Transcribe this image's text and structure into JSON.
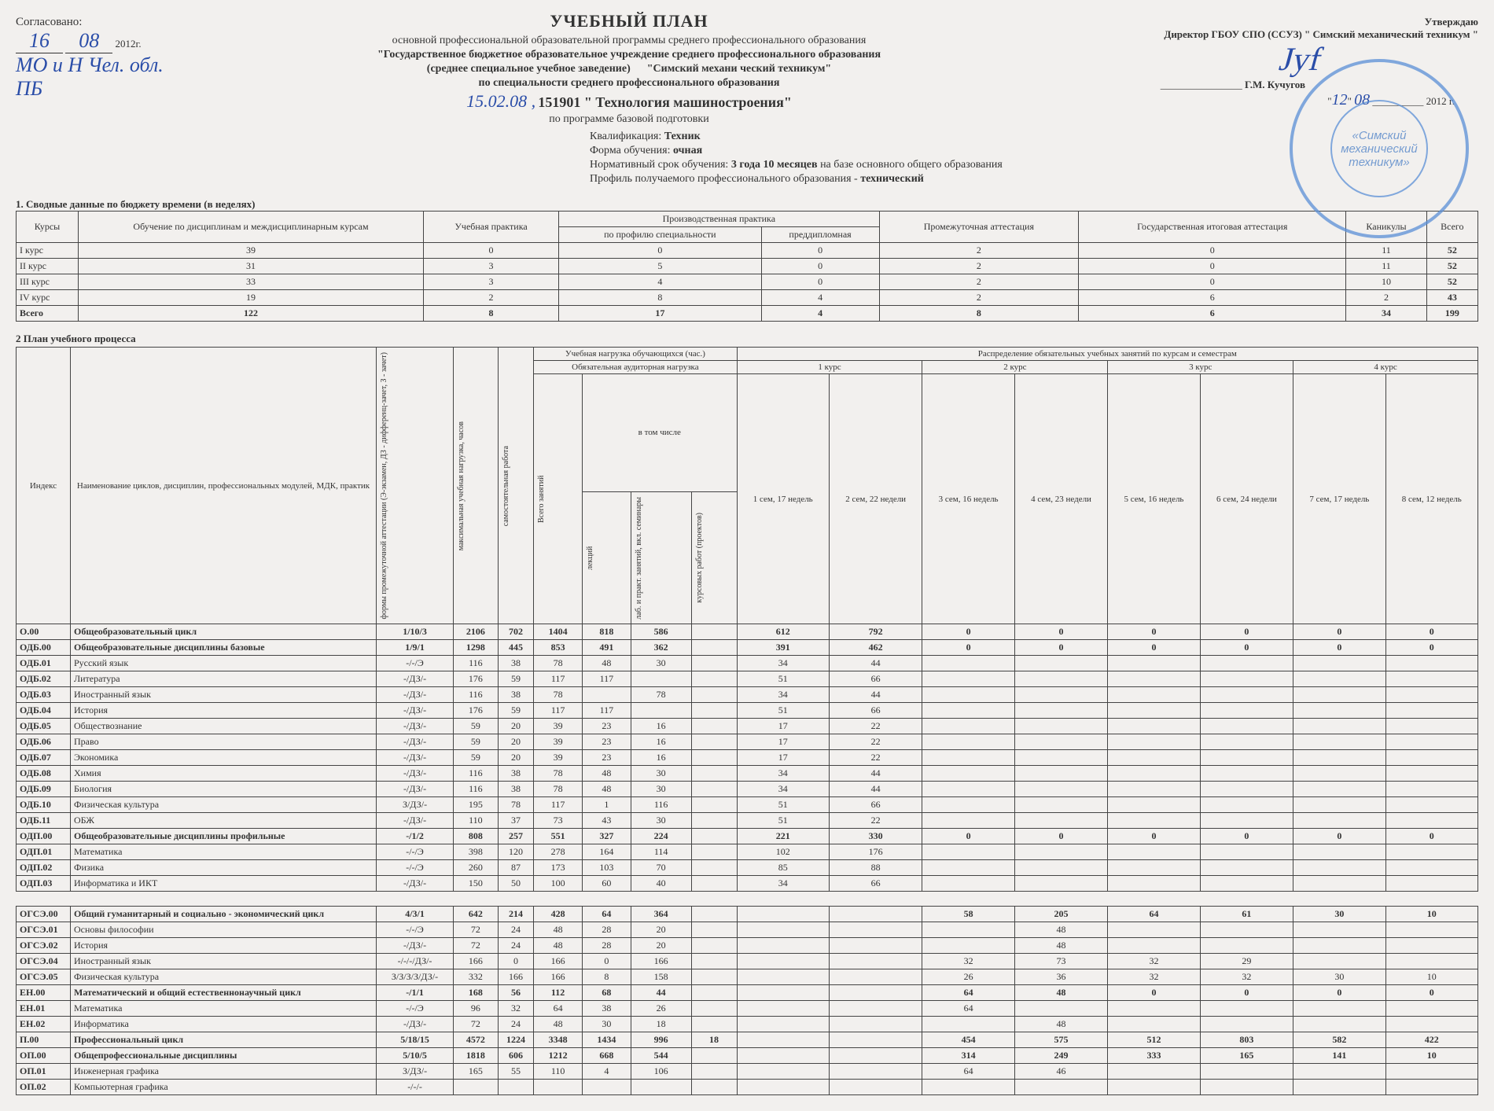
{
  "left": {
    "agreed": "Согласовано:",
    "date_d": "16",
    "date_m": "08",
    "year": "2012г.",
    "hand1": "МО и Н Чел. обл.",
    "hand2": "ПБ"
  },
  "right": {
    "approve": "Утверждаю",
    "director": "Директор ГБОУ СПО (ССУЗ) \" Симский механический техникум \"",
    "name": "Г.М. Кучугов",
    "date_d": "12",
    "date_m": "08",
    "year": "2012 г.",
    "stamp_inner": "«Симский механический техникум»"
  },
  "head": {
    "title": "УЧЕБНЫЙ ПЛАН",
    "sub1": "основной профессиональной образовательной программы среднего профессионального образования",
    "line2a": "\"Государственное  бюджетное образовательное учреждение среднего профессионального образования",
    "line2b": "(среднее специальное учебное  заведение)",
    "line2c": "\"Симский механи ческий техникум\"",
    "line3": "по специальности среднего профессионального образования",
    "code_hand": "15.02.08 ,",
    "code": "151901 \" Технология машиностроения\"",
    "line5": "по программе базовой подготовки"
  },
  "meta": {
    "qual_l": "Квалификация:",
    "qual_v": "Техник",
    "form_l": "Форма обучения:",
    "form_v": "очная",
    "term_l": "Нормативный срок обучения:",
    "term_v": "3 года 10 месяцев",
    "term_t": "на базе основного общего образования",
    "prof_l": "Профиль получаемого профессионального  образования -",
    "prof_v": "технический"
  },
  "t1": {
    "title": "1. Сводные данные по бюджету времени (в неделях)",
    "h": {
      "k": "Курсы",
      "train": "Обучение по дисциплинам и междисциплинарным курсам",
      "up": "Учебная практика",
      "pp": "Производственная практика",
      "pp1": "по профилю специальности",
      "pp2": "преддипломная",
      "pa": "Промежуточная аттестация",
      "gia": "Государственная итоговая аттестация",
      "vac": "Каникулы",
      "tot": "Всего"
    },
    "rows": [
      {
        "k": "I курс",
        "t": "39",
        "up": "0",
        "p1": "0",
        "p2": "0",
        "pa": "2",
        "g": "0",
        "v": "11",
        "s": "52"
      },
      {
        "k": "II курс",
        "t": "31",
        "up": "3",
        "p1": "5",
        "p2": "0",
        "pa": "2",
        "g": "0",
        "v": "11",
        "s": "52"
      },
      {
        "k": "III курс",
        "t": "33",
        "up": "3",
        "p1": "4",
        "p2": "0",
        "pa": "2",
        "g": "0",
        "v": "10",
        "s": "52"
      },
      {
        "k": "IV курс",
        "t": "19",
        "up": "2",
        "p1": "8",
        "p2": "4",
        "pa": "2",
        "g": "6",
        "v": "2",
        "s": "43"
      }
    ],
    "total": {
      "k": "Всего",
      "t": "122",
      "up": "8",
      "p1": "17",
      "p2": "4",
      "pa": "8",
      "g": "6",
      "v": "34",
      "s": "199"
    }
  },
  "t2": {
    "title": "2 План учебного процесса",
    "h": {
      "idx": "Индекс",
      "name": "Наименование циклов, дисциплин, профессиональных модулей, МДК, практик",
      "att": "формы промежуточной аттестации (Э-экзамен, ДЗ - дифференц-зачет, З - зачет)",
      "max": "максимальная учебная нагрузка, часов",
      "self": "самостоятельная работа",
      "load": "Учебная нагрузка обучающихся (час.)",
      "oblig": "Обязательная аудиторная нагрузка",
      "incl": "в том числе",
      "tot": "Всего занятий",
      "lec": "лекций",
      "lab": "лаб. и практ. занятий, вкл. семинары",
      "kp": "курсовых работ (проектов)",
      "dist": "Распределение обязательных учебных занятий по курсам и семестрам",
      "k1": "1 курс",
      "k2": "2 курс",
      "k3": "3 курс",
      "k4": "4 курс",
      "s1": "1 сем, 17 недель",
      "s2": "2 сем, 22 недели",
      "s3": "3 сем, 16 недель",
      "s4": "4 сем, 23 недели",
      "s5": "5 сем, 16 недель",
      "s6": "6 сем, 24 недели",
      "s7": "7 сем, 17 недель",
      "s8": "8 сем, 12 недель"
    },
    "rows": [
      {
        "sec": true,
        "i": "О.00",
        "n": "Общеобразовательный цикл",
        "a": "1/10/3",
        "mx": "2106",
        "sf": "702",
        "tt": "1404",
        "lc": "818",
        "lb": "586",
        "kp": "",
        "s": [
          "612",
          "792",
          "0",
          "0",
          "0",
          "0",
          "0",
          "0"
        ]
      },
      {
        "sec": true,
        "i": "ОДБ.00",
        "n": "Общеобразовательные дисциплины базовые",
        "a": "1/9/1",
        "mx": "1298",
        "sf": "445",
        "tt": "853",
        "lc": "491",
        "lb": "362",
        "kp": "",
        "s": [
          "391",
          "462",
          "0",
          "0",
          "0",
          "0",
          "0",
          "0"
        ]
      },
      {
        "i": "ОДБ.01",
        "n": "Русский язык",
        "a": "-/-/Э",
        "mx": "116",
        "sf": "38",
        "tt": "78",
        "lc": "48",
        "lb": "30",
        "kp": "",
        "s": [
          "34",
          "44",
          "",
          "",
          "",
          "",
          "",
          ""
        ]
      },
      {
        "i": "ОДБ.02",
        "n": "Литература",
        "a": "-/ДЗ/-",
        "mx": "176",
        "sf": "59",
        "tt": "117",
        "lc": "117",
        "lb": "",
        "kp": "",
        "s": [
          "51",
          "66",
          "",
          "",
          "",
          "",
          "",
          ""
        ]
      },
      {
        "i": "ОДБ.03",
        "n": "Иностранный язык",
        "a": "-/ДЗ/-",
        "mx": "116",
        "sf": "38",
        "tt": "78",
        "lc": "",
        "lb": "78",
        "kp": "",
        "s": [
          "34",
          "44",
          "",
          "",
          "",
          "",
          "",
          ""
        ]
      },
      {
        "i": "ОДБ.04",
        "n": "История",
        "a": "-/ДЗ/-",
        "mx": "176",
        "sf": "59",
        "tt": "117",
        "lc": "117",
        "lb": "",
        "kp": "",
        "s": [
          "51",
          "66",
          "",
          "",
          "",
          "",
          "",
          ""
        ]
      },
      {
        "i": "ОДБ.05",
        "n": "Обществознание",
        "a": "-/ДЗ/-",
        "mx": "59",
        "sf": "20",
        "tt": "39",
        "lc": "23",
        "lb": "16",
        "kp": "",
        "s": [
          "17",
          "22",
          "",
          "",
          "",
          "",
          "",
          ""
        ]
      },
      {
        "i": "ОДБ.06",
        "n": "Право",
        "a": "-/ДЗ/-",
        "mx": "59",
        "sf": "20",
        "tt": "39",
        "lc": "23",
        "lb": "16",
        "kp": "",
        "s": [
          "17",
          "22",
          "",
          "",
          "",
          "",
          "",
          ""
        ]
      },
      {
        "i": "ОДБ.07",
        "n": "Экономика",
        "a": "-/ДЗ/-",
        "mx": "59",
        "sf": "20",
        "tt": "39",
        "lc": "23",
        "lb": "16",
        "kp": "",
        "s": [
          "17",
          "22",
          "",
          "",
          "",
          "",
          "",
          ""
        ]
      },
      {
        "i": "ОДБ.08",
        "n": "Химия",
        "a": "-/ДЗ/-",
        "mx": "116",
        "sf": "38",
        "tt": "78",
        "lc": "48",
        "lb": "30",
        "kp": "",
        "s": [
          "34",
          "44",
          "",
          "",
          "",
          "",
          "",
          ""
        ]
      },
      {
        "i": "ОДБ.09",
        "n": "Биология",
        "a": "-/ДЗ/-",
        "mx": "116",
        "sf": "38",
        "tt": "78",
        "lc": "48",
        "lb": "30",
        "kp": "",
        "s": [
          "34",
          "44",
          "",
          "",
          "",
          "",
          "",
          ""
        ]
      },
      {
        "i": "ОДБ.10",
        "n": "Физическая культура",
        "a": "З/ДЗ/-",
        "mx": "195",
        "sf": "78",
        "tt": "117",
        "lc": "1",
        "lb": "116",
        "kp": "",
        "s": [
          "51",
          "66",
          "",
          "",
          "",
          "",
          "",
          ""
        ]
      },
      {
        "i": "ОДБ.11",
        "n": "ОБЖ",
        "a": "-/ДЗ/-",
        "mx": "110",
        "sf": "37",
        "tt": "73",
        "lc": "43",
        "lb": "30",
        "kp": "",
        "s": [
          "51",
          "22",
          "",
          "",
          "",
          "",
          "",
          ""
        ]
      },
      {
        "sec": true,
        "i": "ОДП.00",
        "n": "Общеобразовательные дисциплины профильные",
        "a": "-/1/2",
        "mx": "808",
        "sf": "257",
        "tt": "551",
        "lc": "327",
        "lb": "224",
        "kp": "",
        "s": [
          "221",
          "330",
          "0",
          "0",
          "0",
          "0",
          "0",
          "0"
        ]
      },
      {
        "i": "ОДП.01",
        "n": "Математика",
        "a": "-/-/Э",
        "mx": "398",
        "sf": "120",
        "tt": "278",
        "lc": "164",
        "lb": "114",
        "kp": "",
        "s": [
          "102",
          "176",
          "",
          "",
          "",
          "",
          "",
          ""
        ]
      },
      {
        "i": "ОДП.02",
        "n": "Физика",
        "a": "-/-/Э",
        "mx": "260",
        "sf": "87",
        "tt": "173",
        "lc": "103",
        "lb": "70",
        "kp": "",
        "s": [
          "85",
          "88",
          "",
          "",
          "",
          "",
          "",
          ""
        ]
      },
      {
        "i": "ОДП.03",
        "n": "Информатика и ИКТ",
        "a": "-/ДЗ/-",
        "mx": "150",
        "sf": "50",
        "tt": "100",
        "lc": "60",
        "lb": "40",
        "kp": "",
        "s": [
          "34",
          "66",
          "",
          "",
          "",
          "",
          "",
          ""
        ]
      },
      {
        "blank": true
      },
      {
        "sec": true,
        "i": "ОГСЭ.00",
        "n": "Общий гуманитарный и социально - экономический цикл",
        "a": "4/3/1",
        "mx": "642",
        "sf": "214",
        "tt": "428",
        "lc": "64",
        "lb": "364",
        "kp": "",
        "s": [
          "",
          "",
          "58",
          "205",
          "64",
          "61",
          "30",
          "10"
        ]
      },
      {
        "i": "ОГСЭ.01",
        "n": "Основы философии",
        "a": "-/-/Э",
        "mx": "72",
        "sf": "24",
        "tt": "48",
        "lc": "28",
        "lb": "20",
        "kp": "",
        "s": [
          "",
          "",
          "",
          "48",
          "",
          "",
          "",
          ""
        ]
      },
      {
        "i": "ОГСЭ.02",
        "n": "История",
        "a": "-/ДЗ/-",
        "mx": "72",
        "sf": "24",
        "tt": "48",
        "lc": "28",
        "lb": "20",
        "kp": "",
        "s": [
          "",
          "",
          "",
          "48",
          "",
          "",
          "",
          ""
        ]
      },
      {
        "i": "ОГСЭ.04",
        "n": "Иностранный язык",
        "a": "-/-/-/ДЗ/-",
        "mx": "166",
        "sf": "0",
        "tt": "166",
        "lc": "0",
        "lb": "166",
        "kp": "",
        "s": [
          "",
          "",
          "32",
          "73",
          "32",
          "29",
          "",
          ""
        ]
      },
      {
        "i": "ОГСЭ.05",
        "n": "Физическая культура",
        "a": "З/З/З/З/ДЗ/-",
        "mx": "332",
        "sf": "166",
        "tt": "166",
        "lc": "8",
        "lb": "158",
        "kp": "",
        "s": [
          "",
          "",
          "26",
          "36",
          "32",
          "32",
          "30",
          "10"
        ]
      },
      {
        "sec": true,
        "i": "ЕН.00",
        "n": "Математический и общий естественнонаучный цикл",
        "a": "-/1/1",
        "mx": "168",
        "sf": "56",
        "tt": "112",
        "lc": "68",
        "lb": "44",
        "kp": "",
        "s": [
          "",
          "",
          "64",
          "48",
          "0",
          "0",
          "0",
          "0"
        ]
      },
      {
        "i": "ЕН.01",
        "n": "Математика",
        "a": "-/-/Э",
        "mx": "96",
        "sf": "32",
        "tt": "64",
        "lc": "38",
        "lb": "26",
        "kp": "",
        "s": [
          "",
          "",
          "64",
          "",
          "",
          "",
          "",
          ""
        ]
      },
      {
        "i": "ЕН.02",
        "n": "Информатика",
        "a": "-/ДЗ/-",
        "mx": "72",
        "sf": "24",
        "tt": "48",
        "lc": "30",
        "lb": "18",
        "kp": "",
        "s": [
          "",
          "",
          "",
          "48",
          "",
          "",
          "",
          ""
        ]
      },
      {
        "sec": true,
        "i": "П.00",
        "n": "Профессиональный цикл",
        "a": "5/18/15",
        "mx": "4572",
        "sf": "1224",
        "tt": "3348",
        "lc": "1434",
        "lb": "996",
        "kp": "18",
        "s": [
          "",
          "",
          "454",
          "575",
          "512",
          "803",
          "582",
          "422"
        ]
      },
      {
        "sec": true,
        "i": "ОП.00",
        "n": "Общепрофессиональные дисциплины",
        "a": "5/10/5",
        "mx": "1818",
        "sf": "606",
        "tt": "1212",
        "lc": "668",
        "lb": "544",
        "kp": "",
        "s": [
          "",
          "",
          "314",
          "249",
          "333",
          "165",
          "141",
          "10"
        ]
      },
      {
        "i": "ОП.01",
        "n": "Инженерная графика",
        "a": "З/ДЗ/-",
        "mx": "165",
        "sf": "55",
        "tt": "110",
        "lc": "4",
        "lb": "106",
        "kp": "",
        "s": [
          "",
          "",
          "64",
          "46",
          "",
          "",
          "",
          ""
        ]
      },
      {
        "i": "ОП.02",
        "n": "Компьютерная графика",
        "a": "-/-/-",
        "mx": "",
        "sf": "",
        "tt": "",
        "lc": "",
        "lb": "",
        "kp": "",
        "s": [
          "",
          "",
          "",
          "",
          "",
          "",
          "",
          ""
        ]
      }
    ]
  },
  "colors": {
    "border": "#444",
    "stamp": "#5a8fd6",
    "ink": "#2a4da8",
    "bg": "#f2f0ee"
  }
}
